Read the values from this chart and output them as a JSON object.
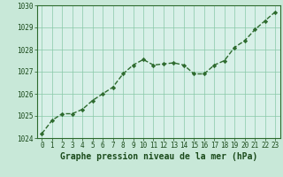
{
  "x": [
    0,
    1,
    2,
    3,
    4,
    5,
    6,
    7,
    8,
    9,
    10,
    11,
    12,
    13,
    14,
    15,
    16,
    17,
    18,
    19,
    20,
    21,
    22,
    23
  ],
  "y": [
    1024.2,
    1024.8,
    1025.1,
    1025.1,
    1025.3,
    1025.7,
    1026.0,
    1026.3,
    1026.9,
    1027.3,
    1027.55,
    1027.3,
    1027.35,
    1027.4,
    1027.3,
    1026.9,
    1026.9,
    1027.3,
    1027.5,
    1028.1,
    1028.4,
    1028.9,
    1029.3,
    1029.7
  ],
  "line_color": "#2d6a2d",
  "marker": "D",
  "marker_size": 2.2,
  "bg_color": "#c8e8d8",
  "plot_bg_color": "#d8f0e8",
  "grid_color": "#88c8a8",
  "xlabel": "Graphe pression niveau de la mer (hPa)",
  "xlabel_fontsize": 7,
  "xlabel_color": "#1a4a1a",
  "ylim": [
    1024,
    1030
  ],
  "yticks": [
    1024,
    1025,
    1026,
    1027,
    1028,
    1029,
    1030
  ],
  "xticks": [
    0,
    1,
    2,
    3,
    4,
    5,
    6,
    7,
    8,
    9,
    10,
    11,
    12,
    13,
    14,
    15,
    16,
    17,
    18,
    19,
    20,
    21,
    22,
    23
  ],
  "tick_fontsize": 5.5,
  "tick_color": "#1a4a1a",
  "border_color": "#2d6a2d",
  "line_width": 1.0
}
